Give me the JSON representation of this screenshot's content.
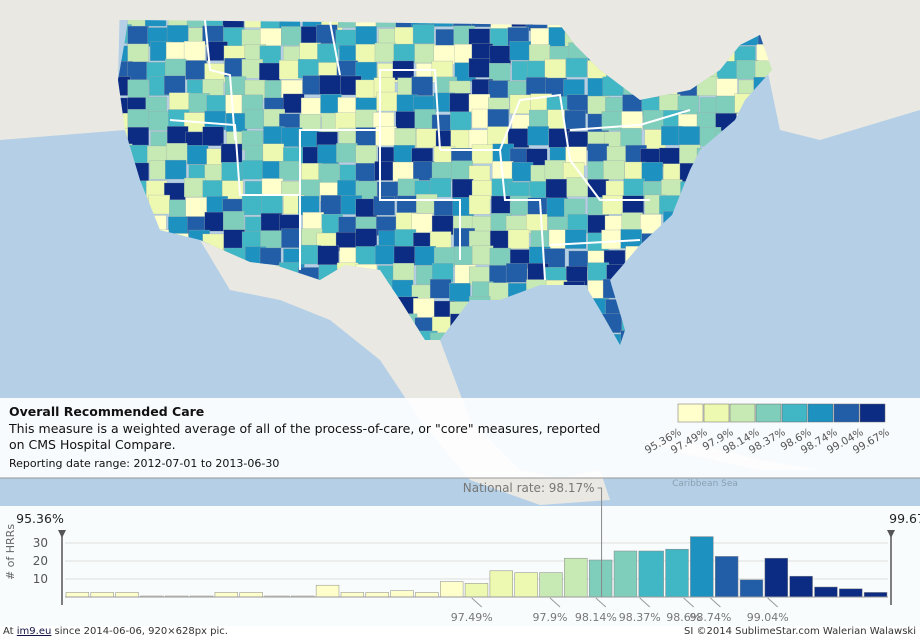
{
  "info": {
    "title": "Overall Recommended Care",
    "description": "This measure is a weighted average of all of the process-of-care, or \"core\" measures, reported on CMS Hospital Compare.",
    "date_range": "Reporting date range: 2012-07-01 to 2013-06-30"
  },
  "map_label": "Caribbean Sea",
  "footer": {
    "prefix": "At",
    "link": "im9.eu",
    "suffix": "since 2014-06-06, 920×628px pic.",
    "right": "SI ©2014 SublimeStar.com Walerian Walawski"
  },
  "chart_data": {
    "type": "histogram",
    "y_label": "# of HRRs",
    "bins": [
      95.36,
      95.49,
      95.62,
      95.75,
      95.88,
      96.01,
      96.14,
      96.27,
      96.4,
      96.54,
      96.67,
      96.8,
      96.93,
      97.06,
      97.19,
      97.32,
      97.45,
      97.58,
      97.71,
      97.84,
      97.97,
      98.1,
      98.23,
      98.36,
      98.5,
      98.63,
      98.76,
      98.89,
      99.02,
      99.15,
      99.28,
      99.41,
      99.54,
      99.67
    ],
    "values": [
      2,
      2,
      2,
      0,
      0,
      0,
      2,
      2,
      0,
      0,
      6,
      2,
      2,
      3,
      2,
      8,
      7,
      14,
      13,
      13,
      21,
      20,
      25,
      25,
      26,
      33,
      22,
      9,
      21,
      11,
      5,
      4,
      2
    ],
    "xlim": [
      95.36,
      99.67
    ],
    "xticks": [
      {
        "value": 95.36,
        "label": "95.36%"
      },
      {
        "value": 97.49,
        "label": "97.49%"
      },
      {
        "value": 97.9,
        "label": "97.9%"
      },
      {
        "value": 98.14,
        "label": "98.14%"
      },
      {
        "value": 98.37,
        "label": "98.37%"
      },
      {
        "value": 98.6,
        "label": "98.6%"
      },
      {
        "value": 98.74,
        "label": "98.74%"
      },
      {
        "value": 99.04,
        "label": "99.04%"
      },
      {
        "value": 99.67,
        "label": "99.67%"
      }
    ],
    "ylim": [
      0,
      35
    ],
    "yticks": [
      10,
      20,
      30
    ],
    "grid": true,
    "national_rate": {
      "value": 98.17,
      "label": "National rate: 98.17%"
    },
    "legend": {
      "breaks": [
        {
          "value": 95.36,
          "label": "95.36%"
        },
        {
          "value": 97.49,
          "label": "97.49%"
        },
        {
          "value": 97.9,
          "label": "97.9%"
        },
        {
          "value": 98.14,
          "label": "98.14%"
        },
        {
          "value": 98.37,
          "label": "98.37%"
        },
        {
          "value": 98.6,
          "label": "98.6%"
        },
        {
          "value": 98.74,
          "label": "98.74%"
        },
        {
          "value": 99.04,
          "label": "99.04%"
        },
        {
          "value": 99.67,
          "label": "99.67%"
        }
      ],
      "colors": [
        "#ffffcc",
        "#edf8b1",
        "#c7e9b4",
        "#7fcdbb",
        "#41b6c4",
        "#1d91c0",
        "#225ea8",
        "#0c2c84"
      ]
    }
  }
}
